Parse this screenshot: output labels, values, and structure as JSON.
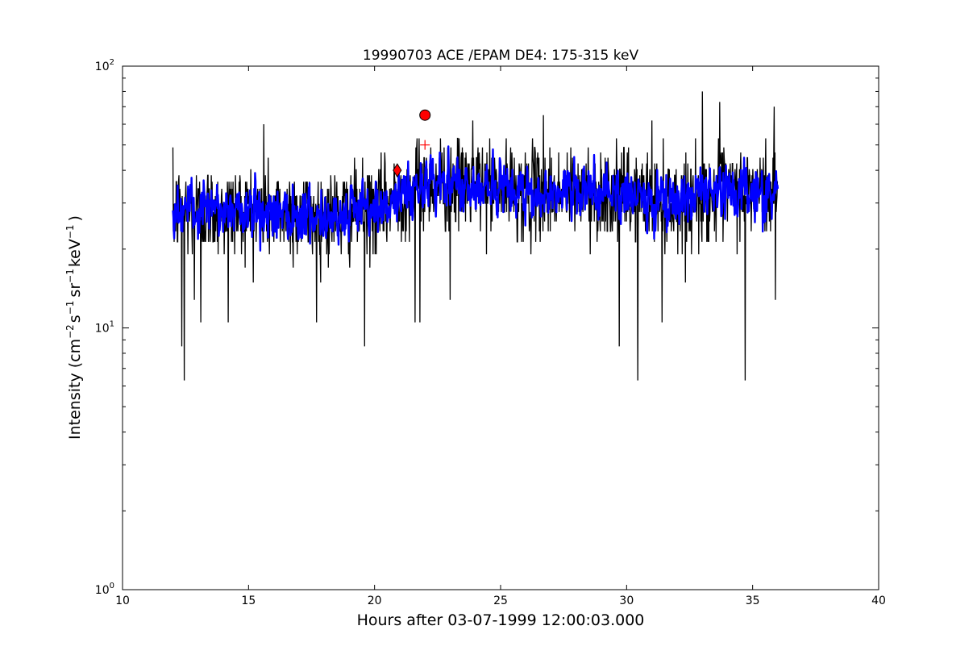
{
  "chart_data": {
    "type": "line",
    "title": "19990703 ACE /EPAM DE4: 175-315 keV",
    "xlabel": "Hours after 03-07-1999 12:00:03.000",
    "ylabel": {
      "prefix": "Intensity (cm",
      "exp1": "−2",
      "s": "s",
      "exp2": "−1",
      "sr": "sr",
      "exp3": "−1",
      "kev": "keV",
      "exp4": "−1",
      "suffix": ")"
    },
    "xlim": [
      10,
      40
    ],
    "ylim": [
      1,
      100
    ],
    "yscale": "log",
    "grid": false,
    "x_ticks": [
      {
        "value": 10,
        "label": "10"
      },
      {
        "value": 15,
        "label": "15"
      },
      {
        "value": 20,
        "label": "20"
      },
      {
        "value": 25,
        "label": "25"
      },
      {
        "value": 30,
        "label": "30"
      },
      {
        "value": 35,
        "label": "35"
      },
      {
        "value": 40,
        "label": "40"
      }
    ],
    "y_ticks": [
      {
        "value": 1,
        "base": "10",
        "exp": "0"
      },
      {
        "value": 10,
        "base": "10",
        "exp": "1"
      },
      {
        "value": 100,
        "base": "10",
        "exp": "2"
      }
    ],
    "series": [
      {
        "color": "#000000",
        "x_range": [
          12.0,
          36.0
        ],
        "profile": [
          [
            12,
            28
          ],
          [
            14,
            28
          ],
          [
            16,
            28
          ],
          [
            18,
            27
          ],
          [
            20,
            28
          ],
          [
            21,
            32
          ],
          [
            22,
            36
          ],
          [
            24,
            35
          ],
          [
            26,
            33
          ],
          [
            28,
            33
          ],
          [
            30,
            32
          ],
          [
            32,
            30
          ],
          [
            34,
            33
          ],
          [
            36,
            33
          ]
        ],
        "spikes": [
          {
            "x": 12.35,
            "y": 8.5
          },
          {
            "x": 12.45,
            "y": 6.3
          },
          {
            "x": 12.85,
            "y": 12.8
          },
          {
            "x": 13.1,
            "y": 10.5
          },
          {
            "x": 14.2,
            "y": 10.5
          },
          {
            "x": 15.6,
            "y": 60
          },
          {
            "x": 17.7,
            "y": 10.5
          },
          {
            "x": 19.6,
            "y": 8.5
          },
          {
            "x": 21.6,
            "y": 10.5
          },
          {
            "x": 21.8,
            "y": 10.5
          },
          {
            "x": 23.0,
            "y": 12.8
          },
          {
            "x": 29.7,
            "y": 8.5
          },
          {
            "x": 30.45,
            "y": 6.3
          },
          {
            "x": 31.4,
            "y": 10.5
          },
          {
            "x": 33.0,
            "y": 80
          },
          {
            "x": 34.7,
            "y": 6.3
          },
          {
            "x": 35.9,
            "y": 12.8
          },
          {
            "x": 35.85,
            "y": 70
          },
          {
            "x": 23.9,
            "y": 62
          },
          {
            "x": 26.7,
            "y": 65
          },
          {
            "x": 31.0,
            "y": 62
          },
          {
            "x": 33.7,
            "y": 73
          }
        ]
      },
      {
        "color": "#0000ff",
        "x_range": [
          12.0,
          36.0
        ],
        "profile": [
          [
            12,
            28
          ],
          [
            14,
            28
          ],
          [
            16,
            28
          ],
          [
            18,
            27
          ],
          [
            20,
            28
          ],
          [
            21,
            32
          ],
          [
            22,
            36
          ],
          [
            24,
            35
          ],
          [
            26,
            33
          ],
          [
            28,
            33
          ],
          [
            30,
            32
          ],
          [
            32,
            30
          ],
          [
            34,
            33
          ],
          [
            36,
            33
          ]
        ]
      }
    ],
    "markers": [
      {
        "x": 22.0,
        "y": 65,
        "shape": "circle",
        "color": "#ff0000"
      },
      {
        "x": 20.9,
        "y": 40,
        "shape": "diamond",
        "color": "#ff0000"
      },
      {
        "x": 22.0,
        "y": 50,
        "shape": "plus",
        "color": "#ff0000"
      }
    ]
  }
}
